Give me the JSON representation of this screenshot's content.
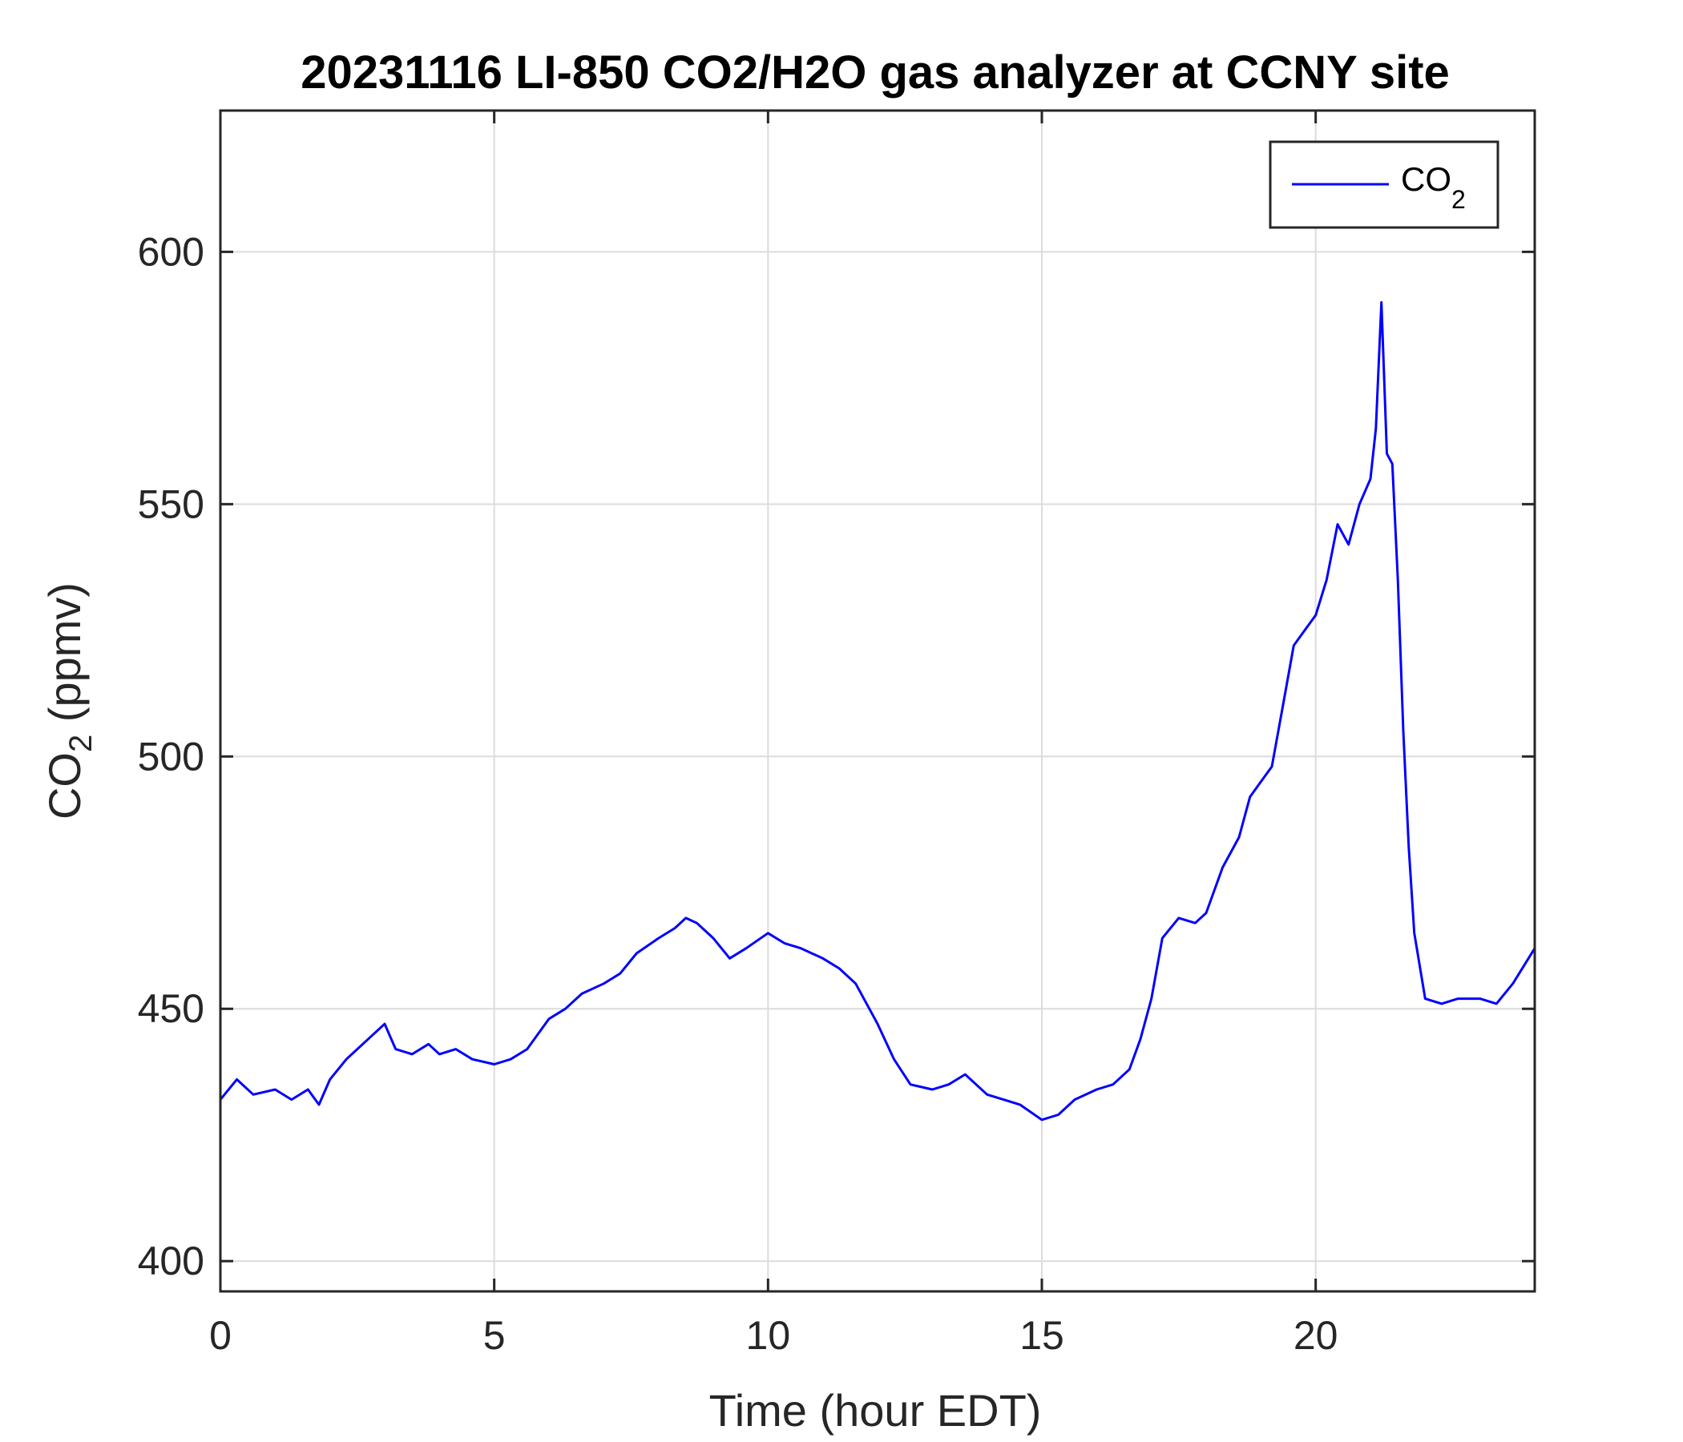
{
  "chart_data": {
    "type": "line",
    "title": "20231116 LI-850 CO2/H2O gas analyzer at CCNY site",
    "xlabel": {
      "main": "Time (hour EDT)"
    },
    "ylabel": {
      "pre": "CO",
      "sub": "2",
      "post": " (ppmv)"
    },
    "xlim": [
      0,
      24
    ],
    "ylim": [
      394,
      628
    ],
    "xticks": [
      0,
      5,
      10,
      15,
      20
    ],
    "yticks": [
      400,
      450,
      500,
      550,
      600
    ],
    "xtick_labels": [
      "0",
      "5",
      "10",
      "15",
      "20"
    ],
    "ytick_labels": [
      "400",
      "450",
      "500",
      "550",
      "600"
    ],
    "grid": true,
    "legend": {
      "position": "top-right",
      "entries": [
        {
          "pre": "CO",
          "sub": "2"
        }
      ]
    },
    "series": [
      {
        "color": "#0000ff",
        "x": [
          0,
          0.3,
          0.6,
          1.0,
          1.3,
          1.6,
          1.8,
          2.0,
          2.3,
          2.5,
          2.8,
          3.0,
          3.2,
          3.5,
          3.8,
          4.0,
          4.3,
          4.6,
          5.0,
          5.3,
          5.6,
          6.0,
          6.3,
          6.6,
          7.0,
          7.3,
          7.6,
          8.0,
          8.3,
          8.5,
          8.7,
          9.0,
          9.3,
          9.6,
          10.0,
          10.3,
          10.6,
          11.0,
          11.3,
          11.6,
          12.0,
          12.3,
          12.6,
          13.0,
          13.3,
          13.6,
          14.0,
          14.3,
          14.6,
          15.0,
          15.3,
          15.6,
          16.0,
          16.3,
          16.6,
          16.8,
          17.0,
          17.2,
          17.5,
          17.8,
          18.0,
          18.3,
          18.6,
          18.8,
          19.0,
          19.2,
          19.4,
          19.6,
          19.8,
          20.0,
          20.2,
          20.4,
          20.6,
          20.8,
          21.0,
          21.1,
          21.2,
          21.3,
          21.4,
          21.5,
          21.6,
          21.7,
          21.8,
          22.0,
          22.3,
          22.6,
          23.0,
          23.3,
          23.6,
          24.0
        ],
        "values": [
          432,
          436,
          433,
          434,
          432,
          434,
          431,
          436,
          440,
          442,
          445,
          447,
          442,
          441,
          443,
          441,
          442,
          440,
          439,
          440,
          442,
          448,
          450,
          453,
          455,
          457,
          461,
          464,
          466,
          468,
          467,
          464,
          460,
          462,
          465,
          463,
          462,
          460,
          458,
          455,
          447,
          440,
          435,
          434,
          435,
          437,
          433,
          432,
          431,
          428,
          429,
          432,
          434,
          435,
          438,
          444,
          452,
          464,
          468,
          467,
          469,
          478,
          484,
          492,
          495,
          498,
          510,
          522,
          525,
          528,
          535,
          546,
          542,
          550,
          555,
          565,
          590,
          560,
          558,
          535,
          505,
          482,
          465,
          452,
          451,
          452,
          452,
          451,
          455,
          462
        ]
      }
    ]
  }
}
